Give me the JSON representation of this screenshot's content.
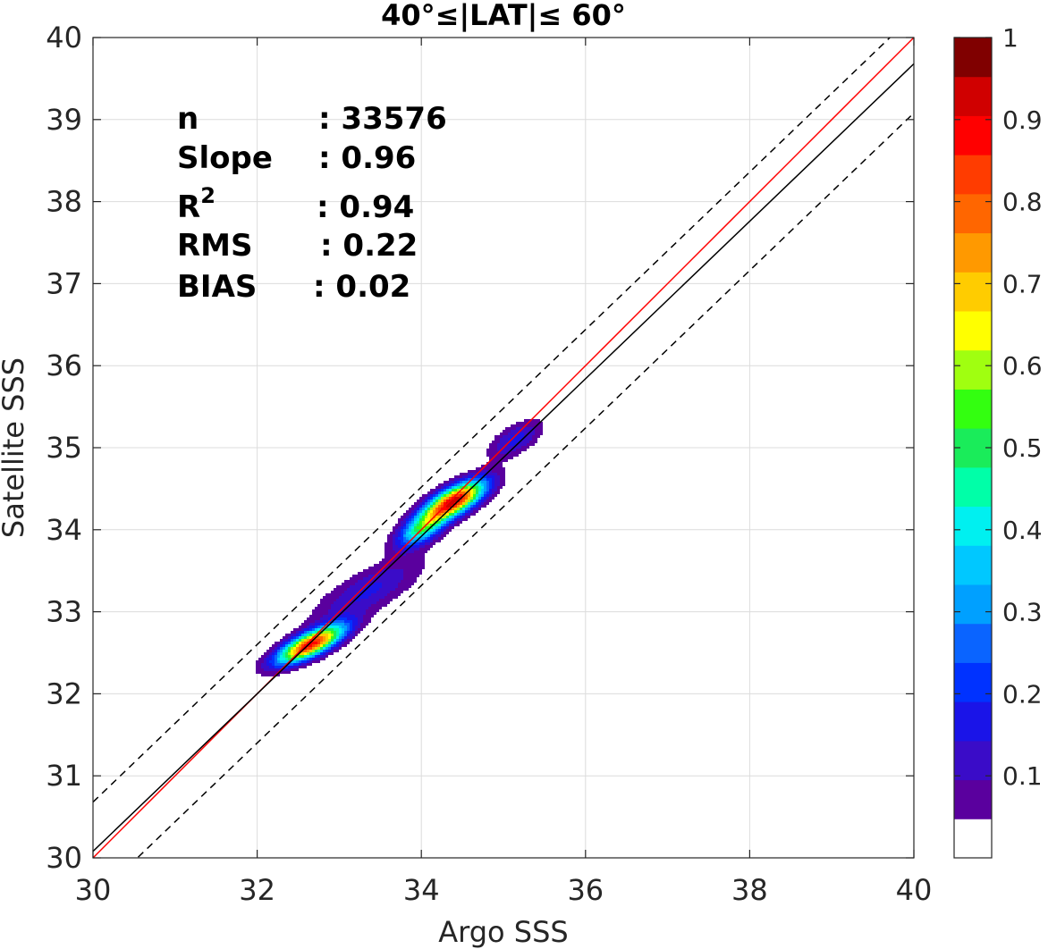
{
  "chart_data": {
    "type": "contour",
    "title": "40°≤|LAT|≤ 60°",
    "xlabel": "Argo SSS",
    "ylabel": "Satellite SSS",
    "xlim": [
      30,
      40
    ],
    "ylim": [
      30,
      40
    ],
    "xticks": [
      "30",
      "32",
      "34",
      "36",
      "38",
      "40"
    ],
    "yticks": [
      "30",
      "31",
      "32",
      "33",
      "34",
      "35",
      "36",
      "37",
      "38",
      "39",
      "40"
    ],
    "grid": true,
    "stats": [
      {
        "label": "n",
        "value": ": 33576"
      },
      {
        "label": "Slope",
        "value": ": 0.96"
      },
      {
        "label": "R",
        "sup": "2",
        "value": ": 0.94"
      },
      {
        "label": "RMS",
        "value": ": 0.22"
      },
      {
        "label": "BIAS",
        "value": ": 0.02"
      }
    ],
    "lines": [
      {
        "role": "identity",
        "color": "#ff0000",
        "slope": 1.0,
        "intercept": 0.0
      },
      {
        "role": "fit",
        "color": "#000000",
        "slope": 0.96,
        "intercept": 1.28
      },
      {
        "role": "upper-bound",
        "color": "#000000",
        "dashed": true,
        "slope": 0.96,
        "intercept": 1.88
      },
      {
        "role": "lower-bound",
        "color": "#000000",
        "dashed": true,
        "slope": 0.96,
        "intercept": 0.68
      }
    ],
    "density_peaks": [
      {
        "x": 32.65,
        "y": 32.6,
        "sx": 0.28,
        "sy": 0.16,
        "rho": 0.75,
        "amp": 0.93
      },
      {
        "x": 34.4,
        "y": 34.35,
        "sx": 0.26,
        "sy": 0.17,
        "rho": 0.7,
        "amp": 0.97
      },
      {
        "x": 34.0,
        "y": 34.0,
        "sx": 0.2,
        "sy": 0.15,
        "rho": 0.6,
        "amp": 0.45
      },
      {
        "x": 33.35,
        "y": 33.25,
        "sx": 0.45,
        "sy": 0.28,
        "rho": 0.75,
        "amp": 0.16
      },
      {
        "x": 35.15,
        "y": 35.1,
        "sx": 0.22,
        "sy": 0.16,
        "rho": 0.6,
        "amp": 0.17
      }
    ],
    "colorbar": {
      "range": [
        0,
        1
      ],
      "ticks": [
        "0.1",
        "0.2",
        "0.3",
        "0.4",
        "0.5",
        "0.6",
        "0.7",
        "0.8",
        "0.9",
        "1"
      ],
      "colors": [
        "#ffffff",
        "#5a009e",
        "#3a0cc8",
        "#1a14e8",
        "#0032ff",
        "#0a64ff",
        "#00a0ff",
        "#00c8ff",
        "#00f0f0",
        "#00ffa8",
        "#1aec5a",
        "#33ff10",
        "#a0ff10",
        "#ffff00",
        "#ffcc00",
        "#ff9900",
        "#ff6600",
        "#ff3c00",
        "#ff0000",
        "#d00000",
        "#800000"
      ]
    }
  }
}
